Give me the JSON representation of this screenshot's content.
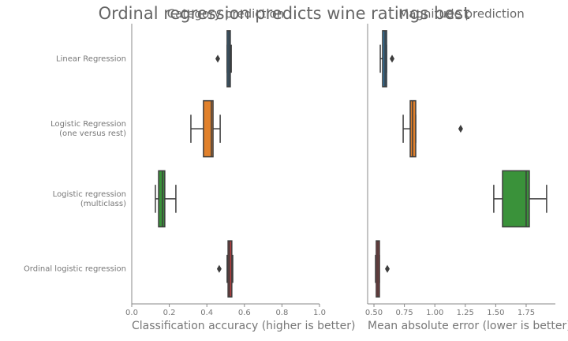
{
  "suptitle": "Ordinal regression predicts wine ratings best",
  "chart_data": [
    {
      "type": "box",
      "title": "Category prediction",
      "xlabel": "Classification accuracy (higher is better)",
      "categories": [
        "Linear Regression",
        "Logistic Regression\n(one versus rest)",
        "Logistic regression\n(multiclass)",
        "Ordinal logistic regression"
      ],
      "colors": [
        "#3274a1",
        "#e1812c",
        "#3a923a",
        "#c03d3e"
      ],
      "boxes": [
        {
          "whislo": 0.508,
          "q1": 0.508,
          "median": 0.517,
          "q3": 0.525,
          "whishi": 0.53,
          "fliers": [
            0.458
          ]
        },
        {
          "whislo": 0.315,
          "q1": 0.382,
          "median": 0.424,
          "q3": 0.433,
          "whishi": 0.471,
          "fliers": []
        },
        {
          "whislo": 0.126,
          "q1": 0.143,
          "median": 0.164,
          "q3": 0.176,
          "whishi": 0.235,
          "fliers": []
        },
        {
          "whislo": 0.508,
          "q1": 0.513,
          "median": 0.521,
          "q3": 0.533,
          "whishi": 0.538,
          "fliers": [
            0.466
          ]
        }
      ],
      "xlim": [
        0,
        1
      ],
      "xticks": [
        {
          "value": 0,
          "label": "0.0"
        },
        0.2,
        0.4,
        0.6,
        0.8,
        {
          "value": 1,
          "label": "1.0"
        }
      ]
    },
    {
      "type": "box",
      "title": "Magnitude prediction",
      "xlabel": "Mean absolute error (lower is better)",
      "colors": [
        "#3274a1",
        "#e1812c",
        "#3a923a",
        "#c03d3e"
      ],
      "boxes": [
        {
          "whislo": 0.552,
          "q1": 0.571,
          "median": 0.591,
          "q3": 0.604,
          "whishi": 0.604,
          "fliers": [
            0.649
          ]
        },
        {
          "whislo": 0.74,
          "q1": 0.798,
          "median": 0.817,
          "q3": 0.843,
          "whishi": 0.843,
          "fliers": [
            1.212
          ]
        },
        {
          "whislo": 1.484,
          "q1": 1.556,
          "median": 1.75,
          "q3": 1.776,
          "whishi": 1.918,
          "fliers": []
        },
        {
          "whislo": 0.513,
          "q1": 0.519,
          "median": 0.532,
          "q3": 0.545,
          "whishi": 0.545,
          "fliers": [
            0.61
          ]
        }
      ],
      "xlim": [
        0.448,
        1.99
      ],
      "xticks": [
        {
          "value": 0.5,
          "label": "0.50"
        },
        0.75,
        {
          "value": 1,
          "label": "1.00"
        },
        1.25,
        {
          "value": 1.5,
          "label": "1.50"
        },
        1.75
      ]
    }
  ]
}
